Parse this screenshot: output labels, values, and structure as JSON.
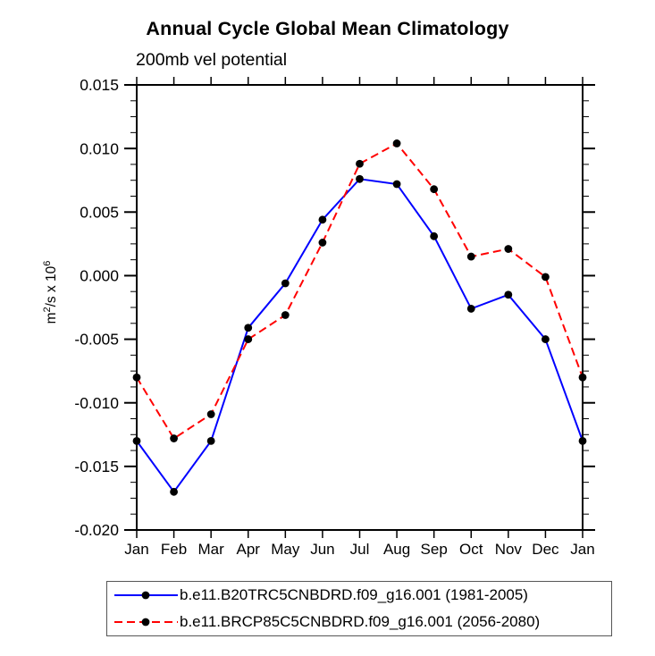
{
  "title": "Annual Cycle Global Mean Climatology",
  "subtitle": "200mb vel potential",
  "ylabel_parts": {
    "base1": "m",
    "sup1": "2",
    "base2": "/s x 10",
    "sup2": "6"
  },
  "chart_data": {
    "type": "line",
    "title": "Annual Cycle Global Mean Climatology",
    "subtitle": "200mb vel potential",
    "ylabel": "m^2/s x 10^6",
    "xlabel": "",
    "categories": [
      "Jan",
      "Feb",
      "Mar",
      "Apr",
      "May",
      "Jun",
      "Jul",
      "Aug",
      "Sep",
      "Oct",
      "Nov",
      "Dec",
      "Jan"
    ],
    "ylim": [
      -0.02,
      0.015
    ],
    "ytick_step": 0.005,
    "ytick_labels": [
      "0.015",
      "0.010",
      "0.005",
      "0.000",
      "-0.005",
      "-0.010",
      "-0.015",
      "-0.020"
    ],
    "minor_tick_step": 0.00125,
    "grid": false,
    "legend_position": "bottom",
    "axis_color": "#000000",
    "marker": "circle",
    "marker_color": "#000000",
    "series": [
      {
        "name": "b.e11.B20TRC5CNBDRD.f09_g16.001 (1981-2005)",
        "color": "#0000ff",
        "style": "solid",
        "values": [
          -0.013,
          -0.017,
          -0.013,
          -0.0041,
          -0.0006,
          0.0044,
          0.0076,
          0.0072,
          0.0031,
          -0.0026,
          -0.0015,
          -0.005,
          -0.013
        ]
      },
      {
        "name": "b.e11.BRCP85C5CNBDRD.f09_g16.001 (2056-2080)",
        "color": "#ff0000",
        "style": "dashed",
        "values": [
          -0.008,
          -0.0128,
          -0.0109,
          -0.005,
          -0.0031,
          0.0026,
          0.0088,
          0.0104,
          0.0068,
          0.0015,
          0.0021,
          -0.0001,
          -0.008
        ]
      }
    ]
  }
}
